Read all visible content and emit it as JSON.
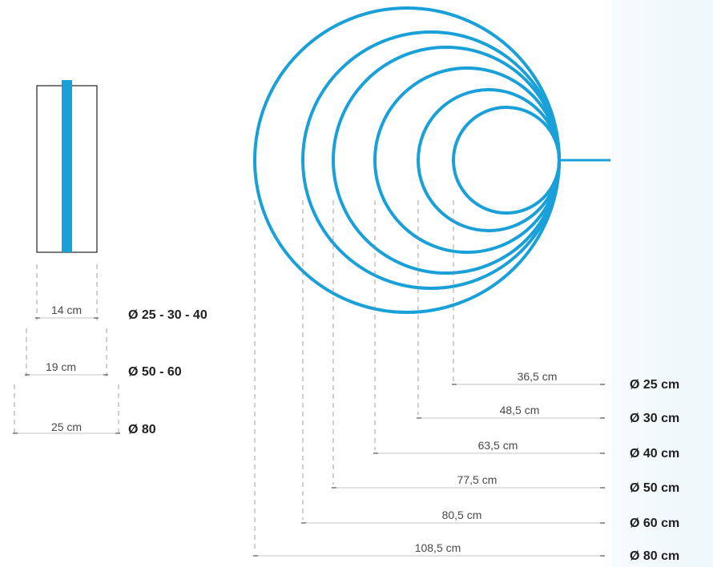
{
  "colors": {
    "accent": "#1aa0d8"
  },
  "side_view": {
    "widths": [
      {
        "label": "14 cm",
        "diameters": "Ø 25 - 30 - 40"
      },
      {
        "label": "19 cm",
        "diameters": "Ø 50 - 60"
      },
      {
        "label": "25 cm",
        "diameters": "Ø 80"
      }
    ]
  },
  "rings": [
    {
      "length": "36,5 cm",
      "diameter": "Ø 25 cm"
    },
    {
      "length": "48,5 cm",
      "diameter": "Ø 30 cm"
    },
    {
      "length": "63,5 cm",
      "diameter": "Ø 40 cm"
    },
    {
      "length": "77,5 cm",
      "diameter": "Ø 50 cm"
    },
    {
      "length": "80,5 cm",
      "diameter": "Ø 60 cm"
    },
    {
      "length": "108,5 cm",
      "diameter": "Ø 80 cm"
    }
  ]
}
